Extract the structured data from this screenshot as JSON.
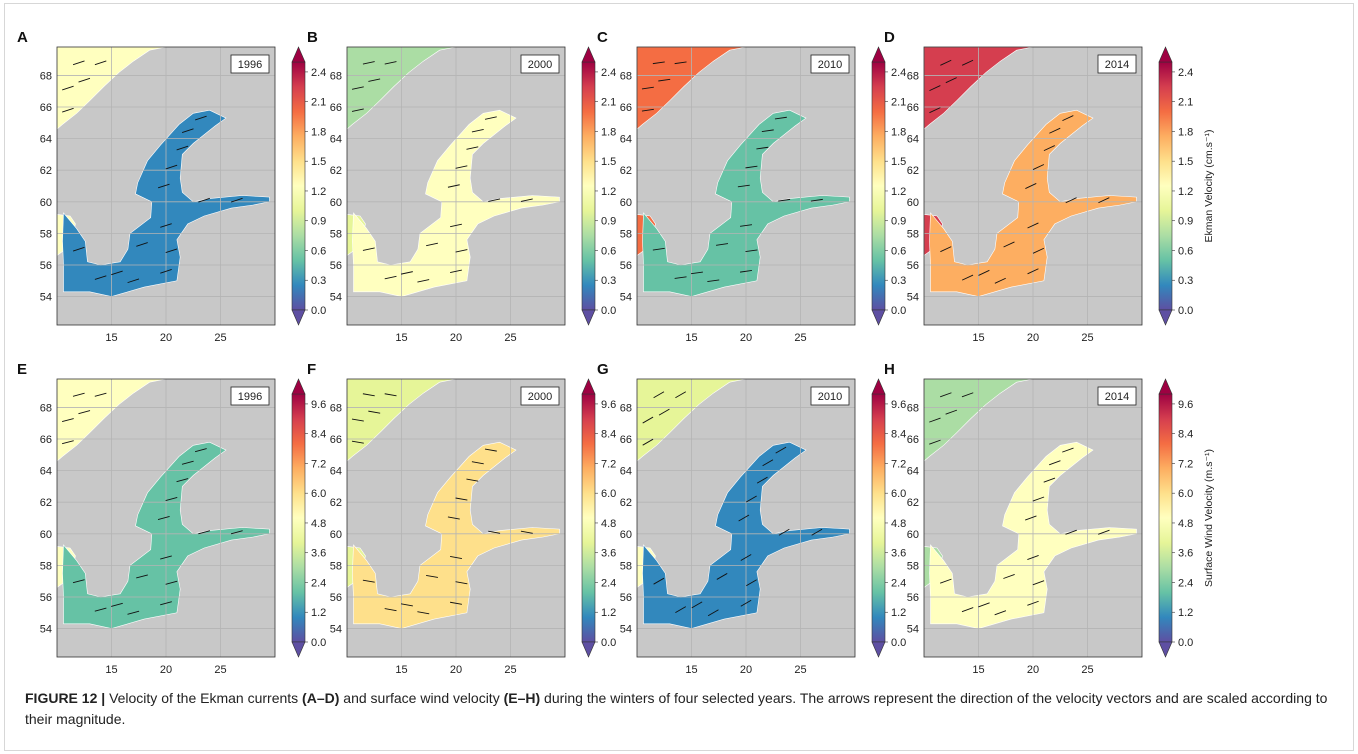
{
  "caption": {
    "label": "FIGURE 12 |",
    "part1": "Velocity of the Ekman currents",
    "range1": "(A–D)",
    "part2": "and surface wind velocity",
    "range2": "(E–H)",
    "part3": "during the winters of four selected years. The arrows represent the direction of the velocity vectors and are scaled according to their magnitude."
  },
  "colors": {
    "land": "#c8c8c8",
    "grid": "#b4b4b4",
    "colormap": "Spectral_r",
    "colormap_stops": [
      "#5e4fa2",
      "#3288bd",
      "#66c2a5",
      "#abdda4",
      "#e6f598",
      "#ffffbf",
      "#fee08b",
      "#fdae61",
      "#f46d43",
      "#d53e4f",
      "#9e0142"
    ]
  },
  "axes": {
    "x_ticks": [
      "15",
      "20",
      "25"
    ],
    "y_ticks": [
      "54",
      "56",
      "58",
      "60",
      "62",
      "64",
      "66",
      "68"
    ]
  },
  "colorbars": {
    "ekman": {
      "ticks": [
        "0.0",
        "0.3",
        "0.6",
        "0.9",
        "1.2",
        "1.5",
        "1.8",
        "2.1",
        "2.4"
      ],
      "label": "Ekman Velocity (cm.s⁻¹)",
      "range": [
        0,
        2.5
      ]
    },
    "wind": {
      "ticks": [
        "0.0",
        "1.2",
        "2.4",
        "3.6",
        "4.8",
        "6.0",
        "7.2",
        "8.4",
        "9.6"
      ],
      "label": "Surface Wind Velocity (m.s⁻¹)",
      "range": [
        0,
        10
      ]
    }
  },
  "panels": [
    {
      "letter": "A",
      "year": "1996",
      "row": 0,
      "col": 0,
      "baltic_level": 0.15,
      "coast_level": 0.55,
      "cmap": "ekman"
    },
    {
      "letter": "B",
      "year": "2000",
      "row": 0,
      "col": 1,
      "baltic_level": 0.55,
      "coast_level": 0.35,
      "cmap": "ekman"
    },
    {
      "letter": "C",
      "year": "2010",
      "row": 0,
      "col": 2,
      "baltic_level": 0.2,
      "coast_level": 0.8,
      "cmap": "ekman"
    },
    {
      "letter": "D",
      "year": "2014",
      "row": 0,
      "col": 3,
      "baltic_level": 0.75,
      "coast_level": 0.95,
      "cmap": "ekman"
    },
    {
      "letter": "E",
      "year": "1996",
      "row": 1,
      "col": 0,
      "baltic_level": 0.2,
      "coast_level": 0.55,
      "cmap": "wind"
    },
    {
      "letter": "F",
      "year": "2000",
      "row": 1,
      "col": 1,
      "baltic_level": 0.6,
      "coast_level": 0.4,
      "cmap": "wind"
    },
    {
      "letter": "G",
      "year": "2010",
      "row": 1,
      "col": 2,
      "baltic_level": 0.1,
      "coast_level": 0.45,
      "cmap": "wind"
    },
    {
      "letter": "H",
      "year": "2014",
      "row": 1,
      "col": 3,
      "baltic_level": 0.55,
      "coast_level": 0.3,
      "cmap": "wind"
    }
  ]
}
